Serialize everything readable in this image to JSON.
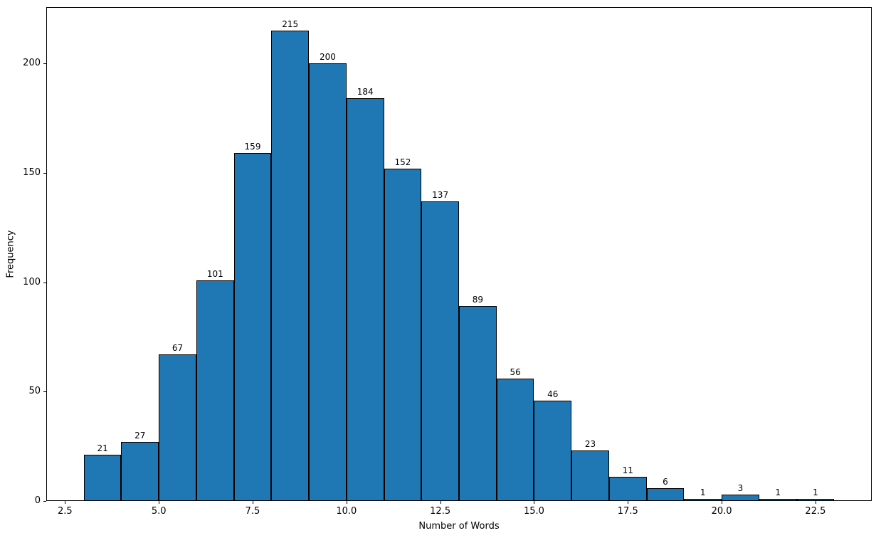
{
  "chart_data": {
    "type": "bar",
    "subtype": "histogram",
    "title": "",
    "xlabel": "Number of Words",
    "ylabel": "Frequency",
    "bin_edges": [
      3,
      4,
      5,
      6,
      7,
      8,
      9,
      10,
      11,
      12,
      13,
      14,
      15,
      16,
      17,
      18,
      19,
      20,
      21,
      22,
      23
    ],
    "values": [
      21,
      27,
      67,
      101,
      159,
      215,
      200,
      184,
      152,
      137,
      89,
      56,
      46,
      23,
      11,
      6,
      1,
      3,
      1,
      1
    ],
    "bar_value_labels": [
      "21",
      "27",
      "67",
      "101",
      "159",
      "215",
      "200",
      "184",
      "152",
      "137",
      "89",
      "56",
      "46",
      "23",
      "11",
      "6",
      "1",
      "3",
      "1",
      "1"
    ],
    "xticks": [
      2.5,
      5.0,
      7.5,
      10.0,
      12.5,
      15.0,
      17.5,
      20.0,
      22.5
    ],
    "xtick_labels": [
      "2.5",
      "5.0",
      "7.5",
      "10.0",
      "12.5",
      "15.0",
      "17.5",
      "20.0",
      "22.5"
    ],
    "yticks": [
      0,
      50,
      100,
      150,
      200
    ],
    "ytick_labels": [
      "0",
      "50",
      "100",
      "150",
      "200"
    ],
    "xlim": [
      2,
      24
    ],
    "ylim": [
      0,
      225.75
    ],
    "grid": false,
    "legend": null,
    "colors": {
      "bar_fill": "#1f77b4",
      "bar_edge": "#000000",
      "axis": "#000000",
      "background": "#ffffff"
    }
  }
}
